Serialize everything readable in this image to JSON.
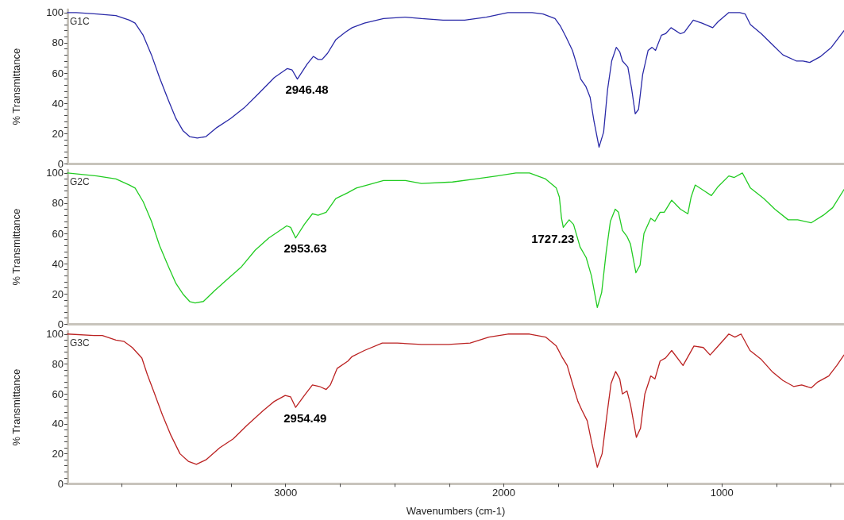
{
  "chart_data": [
    {
      "type": "line",
      "marker": "none",
      "line_style": "solid",
      "tick_labels": "y",
      "ylabel": "% Transmittance",
      "xlim": [
        4000,
        440
      ],
      "ylim": [
        0,
        102
      ],
      "yticks": [
        0,
        {
          "value": 4,
          "label": null
        },
        {
          "value": 8,
          "label": null
        },
        {
          "value": 12,
          "label": null
        },
        {
          "value": 16,
          "label": null
        },
        20,
        {
          "value": 24,
          "label": null
        },
        {
          "value": 28,
          "label": null
        },
        {
          "value": 32,
          "label": null
        },
        {
          "value": 36,
          "label": null
        },
        40,
        {
          "value": 44,
          "label": null
        },
        {
          "value": 48,
          "label": null
        },
        {
          "value": 52,
          "label": null
        },
        {
          "value": 56,
          "label": null
        },
        60,
        {
          "value": 64,
          "label": null
        },
        {
          "value": 68,
          "label": null
        },
        {
          "value": 72,
          "label": null
        },
        {
          "value": 76,
          "label": null
        },
        80,
        {
          "value": 84,
          "label": null
        },
        {
          "value": 88,
          "label": null
        },
        {
          "value": 92,
          "label": null
        },
        {
          "value": 96,
          "label": null
        },
        100
      ],
      "x": [
        4000,
        3960,
        3866,
        3778,
        3716,
        3690,
        3653,
        3615,
        3578,
        3540,
        3503,
        3471,
        3440,
        3405,
        3365,
        3315,
        3252,
        3190,
        3127,
        3052,
        2992,
        2970,
        2946,
        2901,
        2873,
        2851,
        2833,
        2808,
        2770,
        2726,
        2695,
        2639,
        2551,
        2451,
        2377,
        2278,
        2179,
        2080,
        1981,
        1870,
        1820,
        1765,
        1740,
        1715,
        1685,
        1666,
        1647,
        1623,
        1604,
        1586,
        1563,
        1542,
        1524,
        1505,
        1484,
        1468,
        1456,
        1431,
        1413,
        1397,
        1382,
        1363,
        1338,
        1320,
        1304,
        1277,
        1258,
        1233,
        1190,
        1172,
        1131,
        1091,
        1042,
        1017,
        968,
        918,
        893,
        869,
        819,
        770,
        720,
        659,
        628,
        597,
        547,
        498,
        440
      ],
      "series": [
        {
          "name": "G1C",
          "color": "#2a2aa8",
          "values": [
            100,
            100,
            99,
            98,
            95,
            93,
            85,
            72,
            57,
            43,
            30,
            22,
            18,
            17,
            18,
            24,
            30,
            37,
            46,
            57,
            63,
            62,
            56,
            66,
            71,
            69,
            69,
            73,
            82,
            87,
            90,
            93,
            96,
            97,
            96,
            95,
            95,
            97,
            100,
            100,
            99,
            96,
            91,
            84,
            75,
            66,
            56,
            51,
            44,
            28,
            11,
            21,
            49,
            68,
            77,
            74,
            68,
            64,
            49,
            33,
            36,
            59,
            75,
            77,
            75,
            85,
            86,
            90,
            86,
            87,
            95,
            93,
            90,
            94,
            100,
            100,
            99,
            92,
            86,
            79,
            72,
            68,
            68,
            67,
            71,
            77,
            88
          ]
        }
      ],
      "annotations": [
        {
          "text": "2946.48",
          "x": 2946.48,
          "y": 56
        }
      ]
    },
    {
      "type": "line",
      "marker": "none",
      "line_style": "solid",
      "tick_labels": "y",
      "ylabel": "% Transmittance",
      "xlim": [
        4000,
        440
      ],
      "ylim": [
        0,
        102
      ],
      "yticks": [
        0,
        {
          "value": 4,
          "label": null
        },
        {
          "value": 8,
          "label": null
        },
        {
          "value": 12,
          "label": null
        },
        {
          "value": 16,
          "label": null
        },
        20,
        {
          "value": 24,
          "label": null
        },
        {
          "value": 28,
          "label": null
        },
        {
          "value": 32,
          "label": null
        },
        {
          "value": 36,
          "label": null
        },
        40,
        {
          "value": 44,
          "label": null
        },
        {
          "value": 48,
          "label": null
        },
        {
          "value": 52,
          "label": null
        },
        {
          "value": 56,
          "label": null
        },
        60,
        {
          "value": 64,
          "label": null
        },
        {
          "value": 68,
          "label": null
        },
        {
          "value": 72,
          "label": null
        },
        {
          "value": 76,
          "label": null
        },
        80,
        {
          "value": 84,
          "label": null
        },
        {
          "value": 88,
          "label": null
        },
        {
          "value": 92,
          "label": null
        },
        {
          "value": 96,
          "label": null
        },
        100
      ],
      "x": [
        4000,
        3866,
        3778,
        3716,
        3690,
        3653,
        3615,
        3578,
        3540,
        3503,
        3471,
        3440,
        3415,
        3377,
        3327,
        3265,
        3202,
        3139,
        3077,
        2995,
        2977,
        2954,
        2914,
        2877,
        2851,
        2814,
        2770,
        2714,
        2676,
        2626,
        2551,
        2451,
        2377,
        2235,
        2129,
        2031,
        1944,
        1882,
        1808,
        1759,
        1745,
        1735,
        1727,
        1700,
        1680,
        1650,
        1622,
        1598,
        1571,
        1551,
        1530,
        1511,
        1489,
        1474,
        1456,
        1435,
        1419,
        1394,
        1375,
        1357,
        1326,
        1307,
        1283,
        1264,
        1230,
        1190,
        1156,
        1141,
        1122,
        1079,
        1048,
        1017,
        968,
        943,
        906,
        869,
        807,
        757,
        696,
        652,
        591,
        535,
        492,
        440
      ],
      "series": [
        {
          "name": "G2C",
          "color": "#22cc22",
          "values": [
            100,
            98,
            96,
            92,
            90,
            81,
            68,
            52,
            39,
            27,
            20,
            15,
            14,
            15,
            22,
            30,
            38,
            49,
            57,
            65,
            64,
            57,
            66,
            73,
            72,
            74,
            83,
            87,
            90,
            92,
            95,
            95,
            93,
            94,
            96,
            98,
            100,
            100,
            96,
            90,
            84,
            70,
            64,
            69,
            66,
            51,
            44,
            32,
            11,
            21,
            48,
            68,
            76,
            74,
            62,
            58,
            53,
            34,
            39,
            60,
            70,
            68,
            74,
            74,
            82,
            76,
            73,
            84,
            92,
            88,
            85,
            91,
            98,
            97,
            100,
            90,
            83,
            76,
            69,
            69,
            67,
            72,
            77,
            89
          ]
        }
      ],
      "annotations": [
        {
          "text": "2953.63",
          "x": 2953.63,
          "y": 57
        },
        {
          "text": "1727.23",
          "x": 1727.23,
          "y": 64
        }
      ]
    },
    {
      "type": "line",
      "marker": "none",
      "line_style": "solid",
      "ylabel": "% Transmittance",
      "xlabel": "Wavenumbers (cm-1)",
      "xlim": [
        4000,
        440
      ],
      "ylim": [
        0,
        102
      ],
      "xticks": [
        {
          "value": 3750,
          "label": null
        },
        {
          "value": 3500,
          "label": null
        },
        {
          "value": 3250,
          "label": null
        },
        3000,
        {
          "value": 2750,
          "label": null
        },
        {
          "value": 2500,
          "label": null
        },
        {
          "value": 2250,
          "label": null
        },
        2000,
        {
          "value": 1750,
          "label": null
        },
        {
          "value": 1500,
          "label": null
        },
        {
          "value": 1250,
          "label": null
        },
        1000,
        {
          "value": 750,
          "label": null
        },
        {
          "value": 500,
          "label": null
        }
      ],
      "yticks": [
        0,
        {
          "value": 4,
          "label": null
        },
        {
          "value": 8,
          "label": null
        },
        {
          "value": 12,
          "label": null
        },
        {
          "value": 16,
          "label": null
        },
        20,
        {
          "value": 24,
          "label": null
        },
        {
          "value": 28,
          "label": null
        },
        {
          "value": 32,
          "label": null
        },
        {
          "value": 36,
          "label": null
        },
        40,
        {
          "value": 44,
          "label": null
        },
        {
          "value": 48,
          "label": null
        },
        {
          "value": 52,
          "label": null
        },
        {
          "value": 56,
          "label": null
        },
        60,
        {
          "value": 64,
          "label": null
        },
        {
          "value": 68,
          "label": null
        },
        {
          "value": 72,
          "label": null
        },
        {
          "value": 76,
          "label": null
        },
        80,
        {
          "value": 84,
          "label": null
        },
        {
          "value": 88,
          "label": null
        },
        {
          "value": 92,
          "label": null
        },
        {
          "value": 96,
          "label": null
        },
        100
      ],
      "x": [
        4000,
        3878,
        3840,
        3778,
        3740,
        3703,
        3678,
        3659,
        3634,
        3603,
        3565,
        3528,
        3484,
        3446,
        3409,
        3365,
        3302,
        3240,
        3177,
        3102,
        3052,
        3002,
        2977,
        2954,
        2914,
        2877,
        2845,
        2814,
        2795,
        2764,
        2714,
        2695,
        2639,
        2557,
        2488,
        2377,
        2253,
        2154,
        2068,
        1981,
        1882,
        1808,
        1759,
        1734,
        1709,
        1685,
        1660,
        1641,
        1617,
        1596,
        1571,
        1549,
        1526,
        1508,
        1487,
        1468,
        1456,
        1435,
        1419,
        1392,
        1373,
        1353,
        1326,
        1307,
        1283,
        1258,
        1230,
        1178,
        1128,
        1085,
        1054,
        1023,
        968,
        940,
        912,
        871,
        819,
        770,
        720,
        671,
        634,
        591,
        560,
        510,
        473,
        440
      ],
      "series": [
        {
          "name": "G3C",
          "color": "#bb2222",
          "values": [
            100,
            99,
            99,
            96,
            95,
            91,
            87,
            84,
            73,
            61,
            46,
            33,
            20,
            15,
            13,
            16,
            24,
            30,
            39,
            49,
            55,
            59,
            58,
            51,
            59,
            66,
            65,
            63,
            66,
            77,
            82,
            85,
            89,
            94,
            94,
            93,
            93,
            94,
            98,
            100,
            100,
            98,
            92,
            85,
            79,
            67,
            55,
            49,
            42,
            27,
            11,
            20,
            47,
            67,
            75,
            70,
            60,
            62,
            53,
            31,
            37,
            60,
            72,
            70,
            82,
            84,
            89,
            79,
            92,
            91,
            86,
            91,
            100,
            98,
            100,
            89,
            83,
            75,
            69,
            65,
            66,
            64,
            68,
            72,
            79,
            86
          ]
        }
      ],
      "annotations": [
        {
          "text": "2954.49",
          "x": 2954.49,
          "y": 51
        }
      ]
    }
  ]
}
